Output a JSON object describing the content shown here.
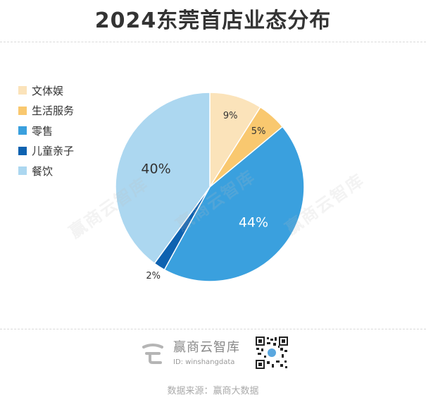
{
  "title": "2024东莞首店业态分布",
  "chart_data": {
    "type": "pie",
    "title": "2024东莞首店业态分布",
    "legend_position": "left",
    "slices": [
      {
        "label": "文体娱",
        "value": 9,
        "display": "9%",
        "color": "#fbe3ba"
      },
      {
        "label": "生活服务",
        "value": 5,
        "display": "5%",
        "color": "#f9c86f"
      },
      {
        "label": "零售",
        "value": 44,
        "display": "44%",
        "color": "#3aa0de"
      },
      {
        "label": "儿童亲子",
        "value": 2,
        "display": "2%",
        "color": "#0e62b0"
      },
      {
        "label": "餐饮",
        "value": 40,
        "display": "40%",
        "color": "#acd7f0"
      }
    ]
  },
  "watermark": "赢商云智库",
  "brand": {
    "name": "赢商云智库",
    "id": "ID: winshangdata",
    "logo_icon": "winshang-logo-icon",
    "qr_icon": "qr-code-icon"
  },
  "source": "数据来源：赢商大数据"
}
